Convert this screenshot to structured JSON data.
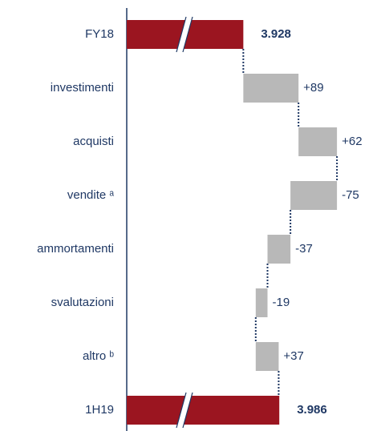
{
  "chart_data": {
    "type": "waterfall",
    "orientation": "horizontal",
    "categories": [
      "FY18",
      "investimenti",
      "acquisti",
      "vendite ᵃ",
      "ammortamenti",
      "svalutazioni",
      "altro ᵇ",
      "1H19"
    ],
    "values": [
      3928,
      89,
      62,
      -75,
      -37,
      -19,
      37,
      3986
    ],
    "value_labels": [
      "3.928",
      "+89",
      "+62",
      "-75",
      "-37",
      "-19",
      "+37",
      "3.986"
    ],
    "totals": [
      true,
      false,
      false,
      false,
      false,
      false,
      false,
      true
    ],
    "total_color": "#9b1520",
    "delta_color": "#b8b8b8",
    "xlim": [
      3740,
      4150
    ],
    "axis_break": true
  }
}
